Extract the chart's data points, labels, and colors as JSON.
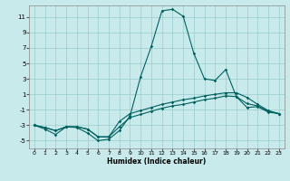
{
  "title": "",
  "xlabel": "Humidex (Indice chaleur)",
  "bg_color": "#c8eaea",
  "grid_color": "#99cccc",
  "line_color": "#006060",
  "xlim": [
    -0.5,
    23.5
  ],
  "ylim": [
    -6,
    12.5
  ],
  "yticks": [
    -5,
    -3,
    -1,
    1,
    3,
    5,
    7,
    9,
    11
  ],
  "xticks": [
    0,
    1,
    2,
    3,
    4,
    5,
    6,
    7,
    8,
    9,
    10,
    11,
    12,
    13,
    14,
    15,
    16,
    17,
    18,
    19,
    20,
    21,
    22,
    23
  ],
  "line1_x": [
    0,
    1,
    2,
    3,
    4,
    5,
    6,
    7,
    8,
    9,
    10,
    11,
    12,
    13,
    14,
    15,
    16,
    17,
    18,
    19,
    20,
    21,
    22,
    23
  ],
  "line1_y": [
    -3.0,
    -3.5,
    -4.2,
    -3.2,
    -3.3,
    -4.0,
    -5.0,
    -4.8,
    -3.7,
    -1.8,
    3.3,
    7.2,
    11.8,
    12.0,
    11.1,
    6.3,
    3.0,
    2.8,
    4.2,
    0.7,
    -0.7,
    -0.6,
    -1.3,
    -1.5
  ],
  "line2_x": [
    0,
    1,
    2,
    3,
    4,
    5,
    6,
    7,
    8,
    9,
    10,
    11,
    12,
    13,
    14,
    15,
    16,
    17,
    18,
    19,
    20,
    21,
    22,
    23
  ],
  "line2_y": [
    -3.0,
    -3.3,
    -3.7,
    -3.2,
    -3.2,
    -3.5,
    -4.5,
    -4.5,
    -3.2,
    -2.0,
    -1.6,
    -1.2,
    -0.8,
    -0.5,
    -0.3,
    0.0,
    0.3,
    0.5,
    0.8,
    0.7,
    -0.2,
    -0.5,
    -1.2,
    -1.5
  ],
  "line3_x": [
    0,
    1,
    2,
    3,
    4,
    5,
    6,
    7,
    8,
    9,
    10,
    11,
    12,
    13,
    14,
    15,
    16,
    17,
    18,
    19,
    20,
    21,
    22,
    23
  ],
  "line3_y": [
    -3.0,
    -3.3,
    -3.7,
    -3.2,
    -3.2,
    -3.5,
    -4.5,
    -4.5,
    -2.5,
    -1.5,
    -1.1,
    -0.7,
    -0.3,
    0.0,
    0.3,
    0.5,
    0.8,
    1.0,
    1.2,
    1.2,
    0.6,
    -0.3,
    -1.1,
    -1.5
  ]
}
